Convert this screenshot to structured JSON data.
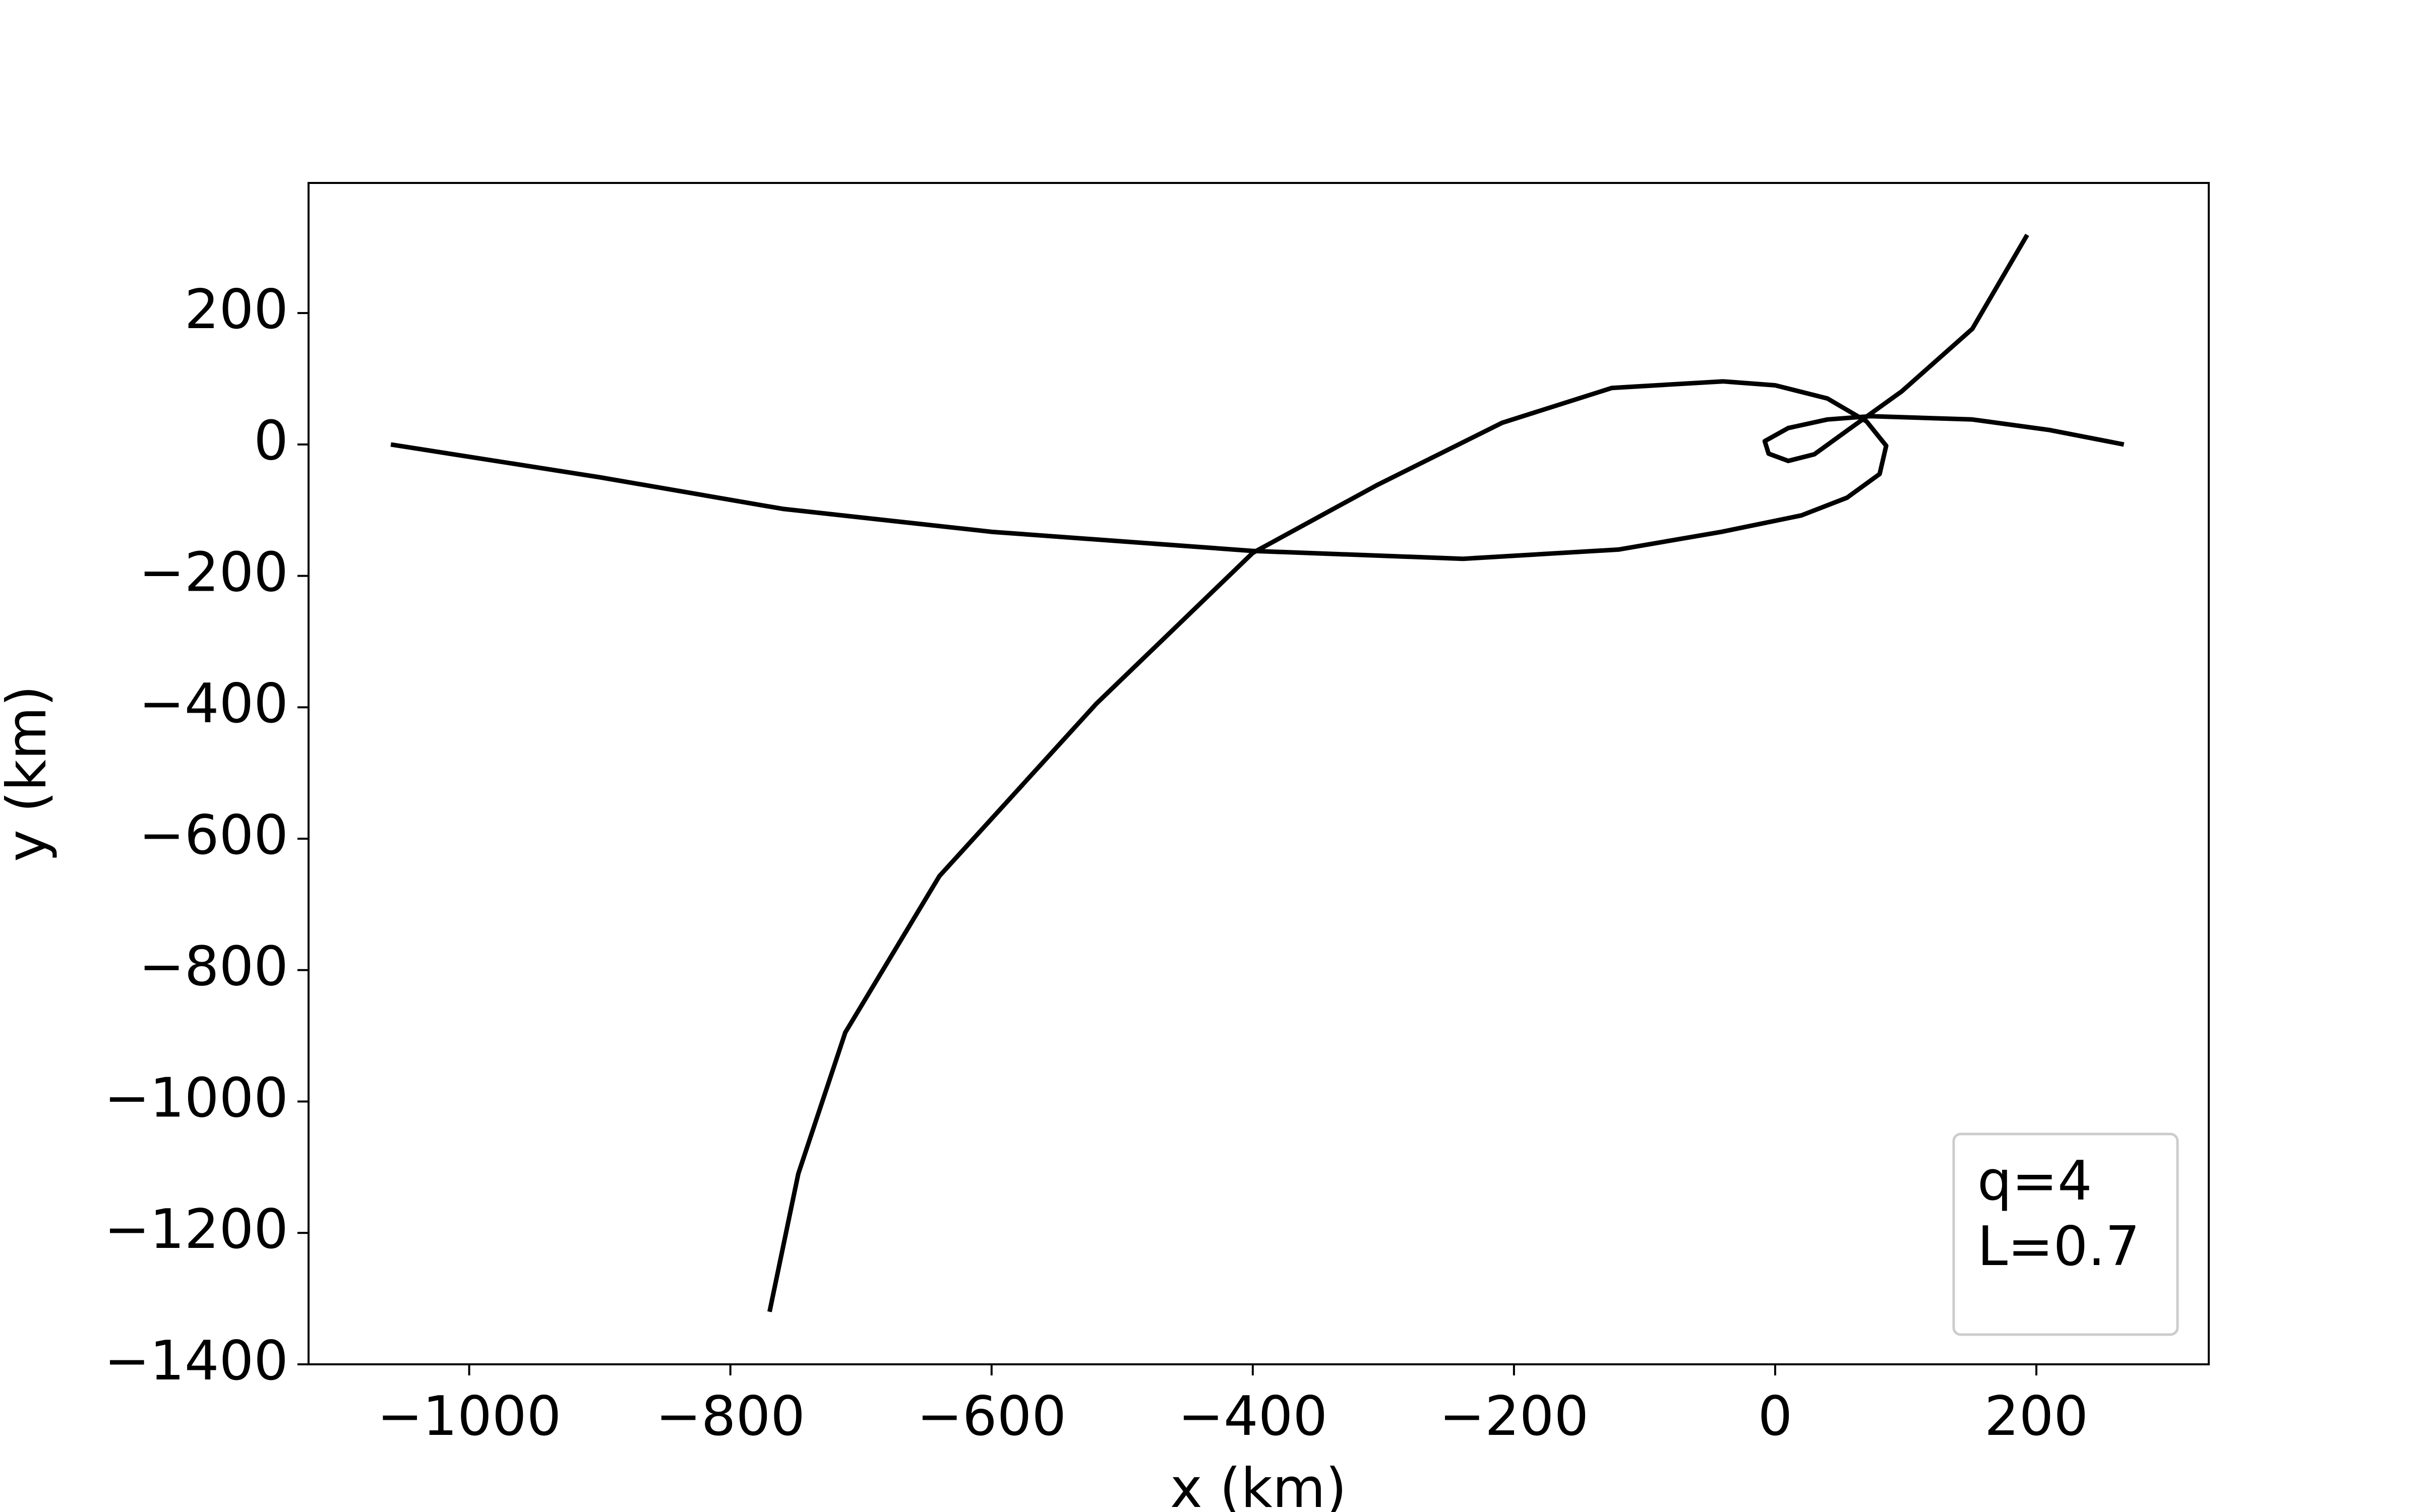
{
  "chart_data": {
    "type": "line",
    "xlabel": "x (km)",
    "ylabel": "y (km)",
    "annotation": [
      "q=4",
      "L=0.7"
    ],
    "xlim": [
      -1123,
      332
    ],
    "ylim": [
      -1400,
      398
    ],
    "xticks": [
      {
        "value": -1000,
        "label": "−1000"
      },
      {
        "value": -800,
        "label": "−800"
      },
      {
        "value": -600,
        "label": "−600"
      },
      {
        "value": -400,
        "label": "−400"
      },
      {
        "value": -200,
        "label": "−200"
      },
      0,
      200
    ],
    "yticks": [
      {
        "value": -1400,
        "label": "−1400"
      },
      {
        "value": -1200,
        "label": "−1200"
      },
      {
        "value": -1000,
        "label": "−1000"
      },
      {
        "value": -800,
        "label": "−800"
      },
      {
        "value": -600,
        "label": "−600"
      },
      {
        "value": -400,
        "label": "−400"
      },
      {
        "value": -200,
        "label": "−200"
      },
      0,
      200
    ],
    "grid": false,
    "series": [
      {
        "color": "#000000",
        "x": [
          -1060,
          -900,
          -760,
          -600,
          -400,
          -239,
          -120,
          -41,
          20,
          55,
          80,
          85,
          70,
          40,
          0,
          -40,
          -125,
          -209,
          -305,
          -400,
          -520,
          -640,
          -712,
          -748,
          -770
        ],
        "values": [
          0,
          -50,
          -98,
          -133,
          -162,
          -174,
          -160,
          -133,
          -108,
          -81,
          -45,
          -2,
          35,
          70,
          90,
          96,
          86,
          33,
          -62,
          -165,
          -395,
          -657,
          -895,
          -1110,
          -1320
        ]
      },
      {
        "color": "#000000",
        "x": [
          193,
          151,
          97,
          55,
          30,
          10,
          -5,
          -8,
          10,
          40,
          73,
          151,
          210,
          267
        ],
        "values": [
          319,
          176,
          81,
          21,
          -15,
          -25,
          -14,
          5,
          25,
          38,
          43,
          38,
          22,
          0
        ]
      }
    ]
  }
}
